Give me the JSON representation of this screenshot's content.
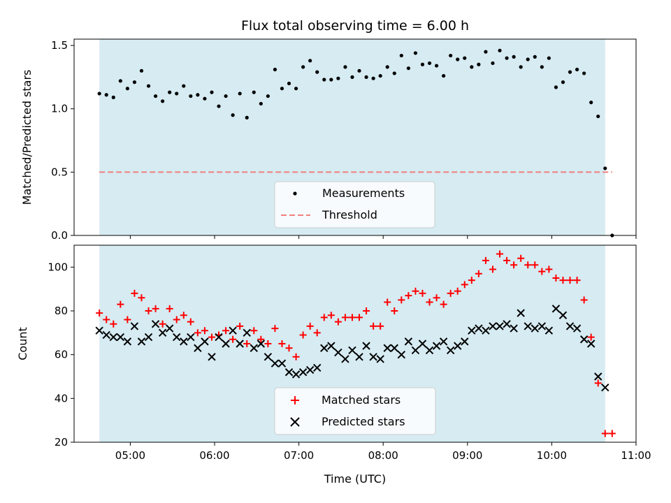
{
  "chart_data": [
    {
      "type": "scatter",
      "title": "Flux total observing time = 6.00 h",
      "xlabel": "",
      "ylabel": "Matched/Predicted stars",
      "ylim": [
        0,
        1.55
      ],
      "xlim": [
        "04:20",
        "11:00"
      ],
      "x_ticks": [
        "05:00",
        "06:00",
        "07:00",
        "08:00",
        "09:00",
        "10:00",
        "11:00"
      ],
      "x_tick_labels_shown": false,
      "y_ticks": [
        "0.0",
        "0.5",
        "1.0",
        "1.5"
      ],
      "shaded_interval": [
        "04:38",
        "10:38"
      ],
      "shaded_color": "#add8e6",
      "grid": false,
      "legend_position": "lower center",
      "legend": [
        "Measurements",
        "Threshold"
      ],
      "series": [
        {
          "name": "Measurements",
          "marker": "dot",
          "color": "#000000",
          "x": [
            "04:38",
            "04:43",
            "04:48",
            "04:53",
            "04:58",
            "05:03",
            "05:08",
            "05:13",
            "05:18",
            "05:23",
            "05:28",
            "05:33",
            "05:38",
            "05:43",
            "05:48",
            "05:53",
            "05:58",
            "06:03",
            "06:08",
            "06:13",
            "06:18",
            "06:23",
            "06:28",
            "06:33",
            "06:38",
            "06:43",
            "06:48",
            "06:53",
            "06:58",
            "07:03",
            "07:08",
            "07:13",
            "07:18",
            "07:23",
            "07:28",
            "07:33",
            "07:38",
            "07:43",
            "07:48",
            "07:53",
            "07:58",
            "08:03",
            "08:08",
            "08:13",
            "08:18",
            "08:23",
            "08:28",
            "08:33",
            "08:38",
            "08:43",
            "08:48",
            "08:53",
            "08:58",
            "09:03",
            "09:08",
            "09:13",
            "09:18",
            "09:23",
            "09:28",
            "09:33",
            "09:38",
            "09:43",
            "09:48",
            "09:53",
            "09:58",
            "10:03",
            "10:08",
            "10:13",
            "10:18",
            "10:23",
            "10:28",
            "10:33",
            "10:38",
            "10:43"
          ],
          "y": [
            1.12,
            1.11,
            1.09,
            1.22,
            1.16,
            1.21,
            1.3,
            1.18,
            1.1,
            1.06,
            1.13,
            1.12,
            1.18,
            1.1,
            1.11,
            1.08,
            1.13,
            1.02,
            1.1,
            0.95,
            1.12,
            0.93,
            1.13,
            1.04,
            1.1,
            1.31,
            1.16,
            1.2,
            1.16,
            1.33,
            1.38,
            1.29,
            1.23,
            1.23,
            1.24,
            1.33,
            1.25,
            1.3,
            1.25,
            1.24,
            1.26,
            1.33,
            1.28,
            1.42,
            1.32,
            1.44,
            1.35,
            1.36,
            1.34,
            1.26,
            1.42,
            1.39,
            1.4,
            1.33,
            1.35,
            1.45,
            1.36,
            1.46,
            1.4,
            1.41,
            1.33,
            1.39,
            1.41,
            1.33,
            1.4,
            1.17,
            1.21,
            1.29,
            1.31,
            1.28,
            1.05,
            0.94,
            0.53,
            0.0
          ]
        },
        {
          "name": "Threshold",
          "style": "dashed",
          "color": "#f08080",
          "x": [
            "04:38",
            "10:43"
          ],
          "y": [
            0.5,
            0.5
          ]
        }
      ]
    },
    {
      "type": "scatter",
      "title": "",
      "xlabel": "Time (UTC)",
      "ylabel": "Count",
      "ylim": [
        20,
        110
      ],
      "xlim": [
        "04:20",
        "11:00"
      ],
      "x_ticks": [
        "05:00",
        "06:00",
        "07:00",
        "08:00",
        "09:00",
        "10:00",
        "11:00"
      ],
      "y_ticks": [
        "20",
        "40",
        "60",
        "80",
        "100"
      ],
      "shaded_interval": [
        "04:38",
        "10:38"
      ],
      "shaded_color": "#add8e6",
      "grid": false,
      "legend_position": "lower center",
      "legend": [
        "Matched stars",
        "Predicted stars"
      ],
      "series": [
        {
          "name": "Matched stars",
          "marker": "plus",
          "color": "#ff0000",
          "x": [
            "04:38",
            "04:43",
            "04:48",
            "04:53",
            "04:58",
            "05:03",
            "05:08",
            "05:13",
            "05:18",
            "05:23",
            "05:28",
            "05:33",
            "05:38",
            "05:43",
            "05:48",
            "05:53",
            "05:58",
            "06:03",
            "06:08",
            "06:13",
            "06:18",
            "06:23",
            "06:28",
            "06:33",
            "06:38",
            "06:43",
            "06:48",
            "06:53",
            "06:58",
            "07:03",
            "07:08",
            "07:13",
            "07:18",
            "07:23",
            "07:28",
            "07:33",
            "07:38",
            "07:43",
            "07:48",
            "07:53",
            "07:58",
            "08:03",
            "08:08",
            "08:13",
            "08:18",
            "08:23",
            "08:28",
            "08:33",
            "08:38",
            "08:43",
            "08:48",
            "08:53",
            "08:58",
            "09:03",
            "09:08",
            "09:13",
            "09:18",
            "09:23",
            "09:28",
            "09:33",
            "09:38",
            "09:43",
            "09:48",
            "09:53",
            "09:58",
            "10:03",
            "10:08",
            "10:13",
            "10:18",
            "10:23",
            "10:28",
            "10:33",
            "10:38",
            "10:43"
          ],
          "y": [
            79,
            76,
            74,
            83,
            76,
            88,
            86,
            80,
            81,
            74,
            81,
            76,
            78,
            75,
            70,
            71,
            68,
            69,
            71,
            67,
            73,
            65,
            71,
            67,
            65,
            72,
            65,
            63,
            59,
            69,
            73,
            70,
            77,
            78,
            75,
            77,
            77,
            77,
            80,
            73,
            73,
            84,
            80,
            85,
            87,
            89,
            88,
            84,
            86,
            83,
            88,
            89,
            92,
            94,
            97,
            103,
            99,
            106,
            103,
            101,
            104,
            101,
            101,
            98,
            99,
            95,
            94,
            94,
            94,
            85,
            68,
            47,
            24,
            24
          ]
        },
        {
          "name": "Predicted stars",
          "marker": "x",
          "color": "#000000",
          "x": [
            "04:38",
            "04:43",
            "04:48",
            "04:53",
            "04:58",
            "05:03",
            "05:08",
            "05:13",
            "05:18",
            "05:23",
            "05:28",
            "05:33",
            "05:38",
            "05:43",
            "05:48",
            "05:53",
            "05:58",
            "06:03",
            "06:08",
            "06:13",
            "06:18",
            "06:23",
            "06:28",
            "06:33",
            "06:38",
            "06:43",
            "06:48",
            "06:53",
            "06:58",
            "07:03",
            "07:08",
            "07:13",
            "07:18",
            "07:23",
            "07:28",
            "07:33",
            "07:38",
            "07:43",
            "07:48",
            "07:53",
            "07:58",
            "08:03",
            "08:08",
            "08:13",
            "08:18",
            "08:23",
            "08:28",
            "08:33",
            "08:38",
            "08:43",
            "08:48",
            "08:53",
            "08:58",
            "09:03",
            "09:08",
            "09:13",
            "09:18",
            "09:23",
            "09:28",
            "09:33",
            "09:38",
            "09:43",
            "09:48",
            "09:53",
            "09:58",
            "10:03",
            "10:08",
            "10:13",
            "10:18",
            "10:23",
            "10:28",
            "10:33",
            "10:38",
            "10:43"
          ],
          "y": [
            71,
            69,
            68,
            68,
            66,
            73,
            66,
            68,
            74,
            70,
            72,
            68,
            66,
            68,
            63,
            66,
            59,
            68,
            65,
            71,
            65,
            70,
            63,
            65,
            59,
            56,
            56,
            52,
            51,
            52,
            53,
            54,
            63,
            64,
            61,
            58,
            62,
            59,
            64,
            59,
            58,
            63,
            63,
            60,
            66,
            62,
            65,
            62,
            64,
            66,
            62,
            64,
            66,
            71,
            72,
            71,
            73,
            73,
            74,
            72,
            79,
            73,
            72,
            73,
            71,
            81,
            78,
            73,
            72,
            67,
            65,
            50,
            45,
            null
          ]
        }
      ]
    }
  ]
}
